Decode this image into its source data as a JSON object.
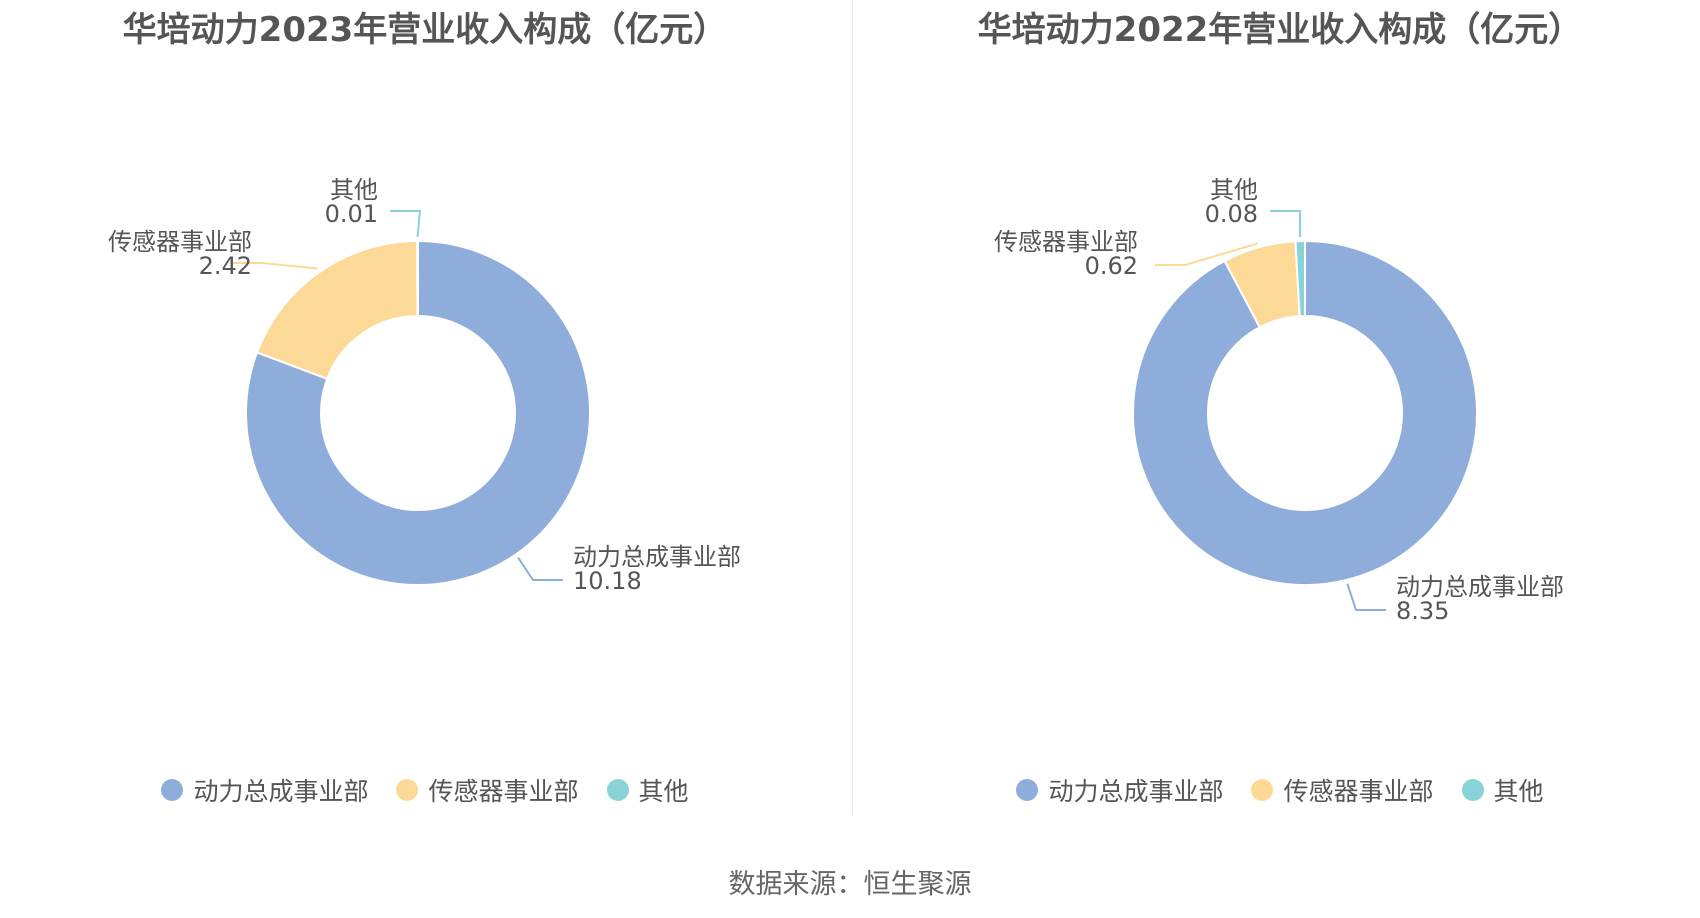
{
  "source": "数据来源：恒生聚源",
  "chart_data": [
    {
      "type": "pie",
      "title": "华培动力2023年营业收入构成（亿元）",
      "categories": [
        "动力总成事业部",
        "传感器事业部",
        "其他"
      ],
      "values": [
        10.18,
        2.42,
        0.01
      ],
      "value_labels": [
        "10.18",
        "2.42",
        "0.01"
      ],
      "colors": [
        "#8fadda",
        "#fdd998",
        "#87d3d8"
      ],
      "legend_position": "bottom"
    },
    {
      "type": "pie",
      "title": "华培动力2022年营业收入构成（亿元）",
      "categories": [
        "动力总成事业部",
        "传感器事业部",
        "其他"
      ],
      "values": [
        8.35,
        0.62,
        0.08
      ],
      "value_labels": [
        "8.35",
        "0.62",
        "0.08"
      ],
      "colors": [
        "#8fadda",
        "#fdd998",
        "#87d3d8"
      ],
      "legend_position": "bottom"
    }
  ]
}
